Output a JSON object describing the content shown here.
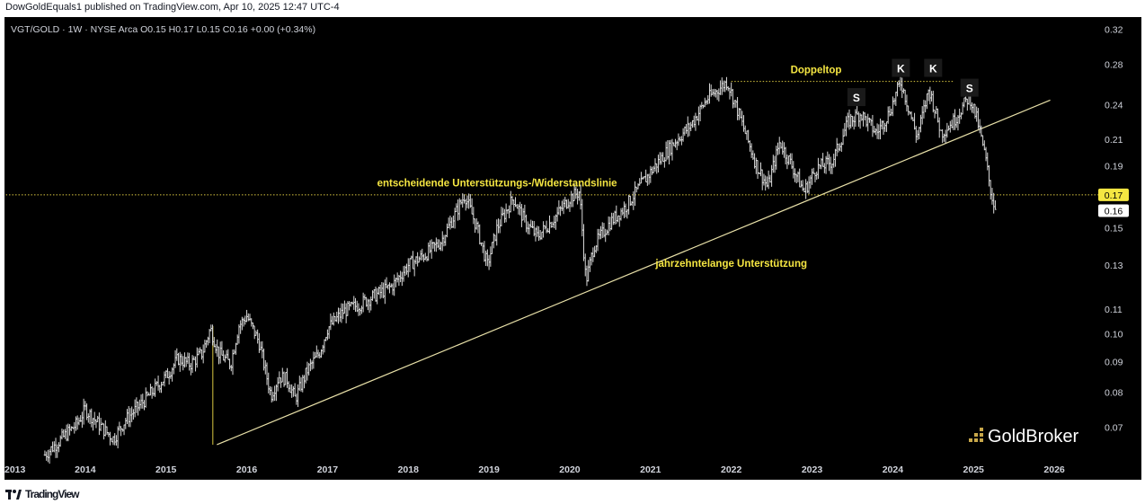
{
  "header": {
    "published_text": "DowGoldEquals1 published on TradingView.com, Apr 10, 2025 12:47 UTC-4"
  },
  "footer": {
    "brand_label": "TradingView",
    "brand_icon": "tradingview-logo-icon"
  },
  "chart_data": {
    "type": "bar",
    "symbol_line": "VGT/GOLD · 1W · NYSE Arca  O0.15  H0.17  L0.15  C0.16  +0.00 (+0.34%)",
    "scale": "log",
    "ylim": [
      0.062,
      0.335
    ],
    "y_ticks": [
      "0.32",
      "0.28",
      "0.24",
      "0.21",
      "0.19",
      "0.17",
      "0.15",
      "0.13",
      "0.11",
      "0.10",
      "0.09",
      "0.08",
      "0.07"
    ],
    "y_tick_values": [
      0.32,
      0.28,
      0.24,
      0.21,
      0.19,
      0.17,
      0.15,
      0.13,
      0.11,
      0.1,
      0.09,
      0.08,
      0.07
    ],
    "x_ticks": [
      "2013",
      "2014",
      "2015",
      "2016",
      "2017",
      "2018",
      "2019",
      "2020",
      "2021",
      "2022",
      "2023",
      "2024",
      "2025",
      "2026"
    ],
    "x_tick_years": [
      2013,
      2014,
      2015,
      2016,
      2017,
      2018,
      2019,
      2020,
      2021,
      2022,
      2023,
      2024,
      2025,
      2026
    ],
    "xlim": [
      2013.0,
      2026.5
    ],
    "price_markers": [
      {
        "label": "0.17",
        "value": 0.17,
        "style": "highlight",
        "color": "#f5e642"
      },
      {
        "label": "0.16",
        "value": 0.16,
        "style": "current",
        "color": "#ffffff"
      }
    ],
    "price_key_points": [
      {
        "date": 2013.5,
        "value": 0.063
      },
      {
        "date": 2013.9,
        "value": 0.071
      },
      {
        "date": 2014.0,
        "value": 0.075
      },
      {
        "date": 2014.2,
        "value": 0.07
      },
      {
        "date": 2014.35,
        "value": 0.067
      },
      {
        "date": 2014.5,
        "value": 0.072
      },
      {
        "date": 2014.75,
        "value": 0.078
      },
      {
        "date": 2015.0,
        "value": 0.085
      },
      {
        "date": 2015.15,
        "value": 0.091
      },
      {
        "date": 2015.3,
        "value": 0.089
      },
      {
        "date": 2015.45,
        "value": 0.093
      },
      {
        "date": 2015.55,
        "value": 0.102
      },
      {
        "date": 2015.65,
        "value": 0.093
      },
      {
        "date": 2015.8,
        "value": 0.089
      },
      {
        "date": 2015.9,
        "value": 0.103
      },
      {
        "date": 2016.0,
        "value": 0.107
      },
      {
        "date": 2016.15,
        "value": 0.097
      },
      {
        "date": 2016.3,
        "value": 0.079
      },
      {
        "date": 2016.4,
        "value": 0.085
      },
      {
        "date": 2016.5,
        "value": 0.084
      },
      {
        "date": 2016.6,
        "value": 0.078
      },
      {
        "date": 2016.75,
        "value": 0.087
      },
      {
        "date": 2016.9,
        "value": 0.093
      },
      {
        "date": 2017.0,
        "value": 0.102
      },
      {
        "date": 2017.2,
        "value": 0.109
      },
      {
        "date": 2017.4,
        "value": 0.112
      },
      {
        "date": 2017.6,
        "value": 0.116
      },
      {
        "date": 2017.8,
        "value": 0.12
      },
      {
        "date": 2018.0,
        "value": 0.13
      },
      {
        "date": 2018.2,
        "value": 0.135
      },
      {
        "date": 2018.4,
        "value": 0.142
      },
      {
        "date": 2018.55,
        "value": 0.155
      },
      {
        "date": 2018.7,
        "value": 0.17
      },
      {
        "date": 2018.85,
        "value": 0.15
      },
      {
        "date": 2018.98,
        "value": 0.13
      },
      {
        "date": 2019.1,
        "value": 0.15
      },
      {
        "date": 2019.3,
        "value": 0.168
      },
      {
        "date": 2019.45,
        "value": 0.153
      },
      {
        "date": 2019.6,
        "value": 0.145
      },
      {
        "date": 2019.8,
        "value": 0.155
      },
      {
        "date": 2020.0,
        "value": 0.168
      },
      {
        "date": 2020.12,
        "value": 0.172
      },
      {
        "date": 2020.2,
        "value": 0.122
      },
      {
        "date": 2020.3,
        "value": 0.14
      },
      {
        "date": 2020.5,
        "value": 0.153
      },
      {
        "date": 2020.7,
        "value": 0.163
      },
      {
        "date": 2020.9,
        "value": 0.178
      },
      {
        "date": 2021.1,
        "value": 0.193
      },
      {
        "date": 2021.3,
        "value": 0.208
      },
      {
        "date": 2021.5,
        "value": 0.222
      },
      {
        "date": 2021.7,
        "value": 0.245
      },
      {
        "date": 2021.95,
        "value": 0.262
      },
      {
        "date": 2022.1,
        "value": 0.23
      },
      {
        "date": 2022.3,
        "value": 0.192
      },
      {
        "date": 2022.45,
        "value": 0.175
      },
      {
        "date": 2022.6,
        "value": 0.208
      },
      {
        "date": 2022.75,
        "value": 0.19
      },
      {
        "date": 2022.9,
        "value": 0.172
      },
      {
        "date": 2023.05,
        "value": 0.188
      },
      {
        "date": 2023.25,
        "value": 0.193
      },
      {
        "date": 2023.45,
        "value": 0.225
      },
      {
        "date": 2023.6,
        "value": 0.232
      },
      {
        "date": 2023.8,
        "value": 0.215
      },
      {
        "date": 2023.95,
        "value": 0.232
      },
      {
        "date": 2024.1,
        "value": 0.262
      },
      {
        "date": 2024.3,
        "value": 0.212
      },
      {
        "date": 2024.45,
        "value": 0.255
      },
      {
        "date": 2024.6,
        "value": 0.215
      },
      {
        "date": 2024.75,
        "value": 0.225
      },
      {
        "date": 2024.95,
        "value": 0.248
      },
      {
        "date": 2025.05,
        "value": 0.225
      },
      {
        "date": 2025.15,
        "value": 0.195
      },
      {
        "date": 2025.22,
        "value": 0.17
      },
      {
        "date": 2025.28,
        "value": 0.16
      }
    ],
    "lines": [
      {
        "kind": "support",
        "points": [
          {
            "date": 2015.63,
            "value": 0.0655
          },
          {
            "date": 2025.95,
            "value": 0.244
          }
        ],
        "color": "#e8e0a8"
      },
      {
        "kind": "resistance",
        "points": [
          {
            "date": 2012.9,
            "value": 0.17
          },
          {
            "date": 2026.6,
            "value": 0.17
          }
        ],
        "color": "#d9c640",
        "dash": true
      },
      {
        "kind": "top",
        "points": [
          {
            "date": 2022.0,
            "value": 0.262
          },
          {
            "date": 2024.75,
            "value": 0.262
          }
        ],
        "color": "#d9c640",
        "dash": true
      },
      {
        "kind": "drop",
        "points": [
          {
            "date": 2015.58,
            "value": 0.103
          },
          {
            "date": 2015.58,
            "value": 0.0655
          }
        ],
        "color": "#d9c640"
      }
    ],
    "annotations": [
      {
        "text": "entscheidende Unterstützungs-/Widerstandslinie",
        "date": 2019.1,
        "value": 0.178,
        "color": "#f5e642"
      },
      {
        "text": "jahrzehntelange Unterstützung",
        "date": 2022.0,
        "value": 0.131,
        "color": "#f5e642"
      },
      {
        "text": "Doppeltop",
        "date": 2023.05,
        "value": 0.274,
        "color": "#f5e642"
      },
      {
        "text": "S",
        "date": 2023.55,
        "value": 0.246,
        "color": "#ffffff"
      },
      {
        "text": "K",
        "date": 2024.1,
        "value": 0.275,
        "color": "#ffffff"
      },
      {
        "text": "K",
        "date": 2024.5,
        "value": 0.275,
        "color": "#ffffff"
      },
      {
        "text": "S",
        "date": 2024.95,
        "value": 0.255,
        "color": "#ffffff"
      }
    ],
    "watermark": {
      "text": "GoldBroker",
      "icon": "goldbroker-logo-icon"
    },
    "colors": {
      "background": "#000000",
      "bars": "#d8d8d8",
      "axis_text": "#d1d4dc",
      "accent": "#f5e642"
    }
  }
}
